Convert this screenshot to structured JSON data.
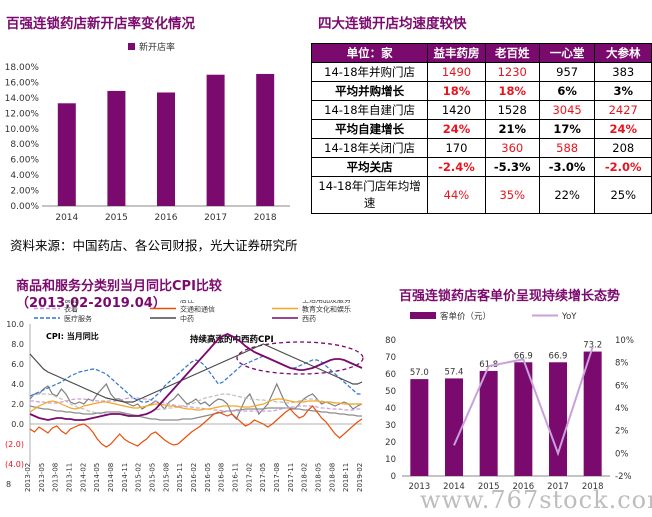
{
  "colors": {
    "purple": "#7B0A6E",
    "lavender": "#C9A0DC",
    "red": "#e8141e"
  },
  "left_title": "百强连锁药店新开店率变化情况",
  "right_title": "四大连锁开店均速度较快",
  "source": "资料来源：中国药店、各公司财报，光大证券研究所",
  "cpi_title_line1": "商品和服务分类别当月同比CPI比较",
  "cpi_title_line2": "（2013.02-2019.04）",
  "price_title": "百强连锁药店客单价呈现持续增长态势",
  "cpi_annotation": "持续高涨的中西药CPI",
  "cpi_inner_label": "CPI: 当月同比",
  "watermark": "www.767stock.com",
  "cpi_page_mark": "8",
  "table": {
    "header": [
      "单位：家",
      "益丰药房",
      "老百姓",
      "一心堂",
      "大参林"
    ],
    "rows": [
      {
        "label": "14-18年并购门店",
        "values": [
          "1490",
          "1230",
          "957",
          "383"
        ],
        "red": [
          true,
          true,
          false,
          false
        ],
        "bold": false
      },
      {
        "label": "平均并购增长",
        "values": [
          "18%",
          "18%",
          "6%",
          "3%"
        ],
        "red": [
          true,
          true,
          false,
          false
        ],
        "bold": true
      },
      {
        "label": "14-18年自建门店",
        "values": [
          "1420",
          "1528",
          "3045",
          "2427"
        ],
        "red": [
          false,
          false,
          true,
          true
        ],
        "bold": false
      },
      {
        "label": "平均自建增长",
        "values": [
          "24%",
          "21%",
          "17%",
          "24%"
        ],
        "red": [
          true,
          false,
          false,
          true
        ],
        "bold": true
      },
      {
        "label": "14-18年关闭门店",
        "values": [
          "170",
          "360",
          "588",
          "208"
        ],
        "red": [
          false,
          true,
          true,
          false
        ],
        "bold": false
      },
      {
        "label": "平均关店",
        "values": [
          "-2.4%",
          "-5.3%",
          "-3.0%",
          "-2.0%"
        ],
        "red": [
          true,
          false,
          false,
          true
        ],
        "bold": true
      },
      {
        "label": "14-18年门店年均增速",
        "values": [
          "44%",
          "35%",
          "22%",
          "25%"
        ],
        "red": [
          true,
          true,
          false,
          false
        ],
        "bold": false
      }
    ]
  },
  "chart_data": [
    {
      "type": "bar",
      "title": "百强连锁药店新开店率变化情况",
      "legend": [
        "新开店率"
      ],
      "categories": [
        "2014",
        "2015",
        "2016",
        "2017",
        "2018"
      ],
      "values": [
        13.3,
        14.9,
        14.7,
        17.0,
        17.1
      ],
      "yticks": [
        "0.00%",
        "2.00%",
        "4.00%",
        "6.00%",
        "8.00%",
        "10.00%",
        "12.00%",
        "14.00%",
        "16.00%",
        "18.00%"
      ],
      "ylim": [
        0,
        18
      ]
    },
    {
      "type": "line",
      "title": "商品和服务分类别当月同比CPI比较",
      "legend": [
        "食品",
        "居住",
        "生活用品及服务",
        "衣着",
        "交通和通信",
        "教育文化和娱乐",
        "医疗服务",
        "中药",
        "西药"
      ],
      "series_colors": [
        "#7f7f7f",
        "#bfbfbf",
        "#8c8c8c",
        "#c9a0dc",
        "#e8500a",
        "#f5a623",
        "#2e75d6",
        "#4a4a4a",
        "#7B0A6E"
      ],
      "xticks": [
        "2013-02",
        "2013-05",
        "2013-08",
        "2013-11",
        "2014-02",
        "2014-05",
        "2014-08",
        "2014-11",
        "2015-02",
        "2015-05",
        "2015-08",
        "2015-11",
        "2016-02",
        "2016-05",
        "2016-08",
        "2016-11",
        "2017-02",
        "2017-05",
        "2017-08",
        "2017-11",
        "2018-02",
        "2018-05",
        "2018-08",
        "2018-11",
        "2019-02"
      ],
      "yticks": [
        "10.0",
        "8.0",
        "6.0",
        "4.0",
        "2.0",
        "0.0",
        "(2.0)",
        "(4.0)"
      ],
      "ylim": [
        -4,
        10
      ],
      "series": [
        {
          "name": "食品",
          "values": [
            2.5,
            3.0,
            3.0,
            3.5,
            3.8,
            3.0,
            2.8,
            3.5,
            3.0,
            2.2,
            2.0,
            2.2,
            2.0,
            2.5,
            2.3,
            3.0,
            3.5,
            4.0,
            3.0,
            2.5,
            2.5,
            2.2,
            2.0,
            1.8,
            2.0,
            1.5,
            1.8,
            2.0,
            2.3,
            2.0,
            1.5,
            2.2,
            2.5,
            3.0,
            2.5,
            2.0,
            2.2,
            2.5,
            2.0,
            2.2,
            1.8,
            2.2,
            2.5,
            2.4,
            2.0,
            1.0,
            0.5,
            1.5,
            2.5,
            3.0,
            2.0,
            1.0,
            1.5,
            2.0,
            3.0,
            4.0,
            3.0,
            2.0,
            1.5,
            1.5,
            2.0,
            2.5,
            2.8,
            3.0,
            2.5,
            2.0,
            2.2,
            2.0,
            1.8,
            2.0,
            2.2,
            2.0,
            1.5,
            1.8,
            2.0
          ]
        },
        {
          "name": "居住",
          "values": [
            2.8,
            2.9,
            3.0,
            3.0,
            3.0,
            2.9,
            2.7,
            2.5,
            2.3,
            2.0,
            1.8,
            1.6,
            1.5,
            1.3,
            1.2,
            1.1,
            1.0,
            1.0,
            1.0,
            1.0,
            1.0,
            1.0,
            0.9,
            0.9,
            0.9,
            0.9,
            1.0,
            1.2,
            1.4,
            1.5,
            1.5,
            1.6,
            1.6,
            1.7,
            1.8,
            1.9,
            2.0,
            2.2,
            2.4,
            2.6,
            2.7,
            2.8,
            2.9,
            3.0,
            3.0,
            2.9,
            2.8,
            2.7,
            2.6,
            2.5,
            2.5,
            2.4,
            2.4,
            2.3,
            2.3,
            2.2,
            2.2,
            2.1,
            2.1,
            2.2,
            2.3,
            2.4,
            2.5,
            2.5,
            2.4,
            2.3,
            2.2,
            2.2,
            2.1,
            2.1,
            2.0,
            2.0,
            2.0,
            2.0,
            2.0
          ]
        },
        {
          "name": "生活用品及服务",
          "values": [
            1.8,
            1.7,
            1.6,
            1.5,
            1.5,
            1.4,
            1.3,
            1.3,
            1.2,
            1.2,
            1.1,
            1.1,
            1.0,
            1.0,
            1.0,
            1.1,
            1.1,
            1.2,
            1.2,
            1.2,
            1.2,
            1.1,
            1.0,
            0.9,
            0.8,
            0.7,
            0.6,
            0.5,
            0.5,
            0.4,
            0.4,
            0.4,
            0.4,
            0.4,
            0.5,
            0.5,
            0.5,
            0.6,
            0.7,
            0.8,
            0.9,
            1.0,
            1.1,
            1.2,
            1.3,
            1.3,
            1.4,
            1.4,
            1.5,
            1.5,
            1.5,
            1.5,
            1.5,
            1.6,
            1.6,
            1.6,
            1.6,
            1.6,
            1.6,
            1.5,
            1.5,
            1.4,
            1.4,
            1.3,
            1.3,
            1.2,
            1.2,
            1.1,
            1.1,
            1.0,
            1.0,
            0.9,
            0.9,
            0.8,
            0.8
          ]
        },
        {
          "name": "衣着",
          "values": [
            2.3,
            2.3,
            2.2,
            2.2,
            2.1,
            2.1,
            2.1,
            2.2,
            2.3,
            2.4,
            2.5,
            2.5,
            2.5,
            2.4,
            2.4,
            2.3,
            2.3,
            2.3,
            2.3,
            2.3,
            2.4,
            2.5,
            2.6,
            2.6,
            2.6,
            2.5,
            2.5,
            2.4,
            2.3,
            2.2,
            2.1,
            2.0,
            1.9,
            1.8,
            1.8,
            1.7,
            1.7,
            1.6,
            1.6,
            1.5,
            1.5,
            1.4,
            1.4,
            1.3,
            1.3,
            1.3,
            1.3,
            1.3,
            1.3,
            1.3,
            1.3,
            1.3,
            1.3,
            1.3,
            1.3,
            1.4,
            1.5,
            1.6,
            1.7,
            1.7,
            1.8,
            1.8,
            1.8,
            1.8,
            1.7,
            1.6,
            1.6,
            1.5,
            1.5,
            1.5,
            1.4,
            1.4,
            1.4,
            1.5,
            1.5
          ]
        },
        {
          "name": "交通和通信",
          "values": [
            -0.5,
            -0.8,
            -0.3,
            -0.6,
            -0.9,
            -0.4,
            -0.2,
            -0.7,
            -1.0,
            -0.5,
            -0.3,
            -0.1,
            0.0,
            -0.3,
            -0.8,
            -1.5,
            -2.0,
            -2.3,
            -2.0,
            -1.5,
            -1.0,
            -1.5,
            -1.8,
            -2.0,
            -2.2,
            -1.8,
            -1.5,
            -1.0,
            -0.8,
            -1.2,
            -1.6,
            -1.9,
            -2.1,
            -2.0,
            -1.6,
            -1.2,
            -0.8,
            -0.5,
            -0.2,
            0.2,
            0.6,
            1.0,
            1.2,
            1.0,
            0.8,
            1.0,
            0.6,
            0.2,
            -0.2,
            0.0,
            0.4,
            0.2,
            0.0,
            -0.3,
            0.0,
            0.4,
            0.8,
            1.2,
            1.5,
            1.0,
            0.6,
            0.8,
            1.4,
            1.8,
            1.2,
            0.6,
            0.2,
            -0.4,
            -1.0,
            -1.4,
            -1.0,
            -0.6,
            -0.2,
            0.2,
            0.5
          ]
        },
        {
          "name": "教育文化和娱乐",
          "values": [
            1.2,
            1.5,
            1.8,
            2.0,
            2.2,
            2.3,
            2.2,
            2.0,
            1.8,
            1.6,
            1.5,
            1.6,
            1.8,
            1.9,
            2.0,
            2.1,
            2.2,
            2.2,
            2.1,
            2.0,
            1.9,
            1.8,
            1.7,
            1.6,
            1.6,
            1.7,
            1.8,
            1.9,
            2.0,
            2.0,
            1.9,
            1.8,
            1.8,
            1.7,
            1.6,
            1.5,
            1.5,
            1.4,
            1.4,
            1.5,
            1.5,
            1.6,
            1.7,
            1.8,
            1.8,
            1.8,
            1.8,
            1.7,
            1.7,
            1.7,
            1.8,
            1.9,
            2.0,
            2.2,
            2.4,
            2.5,
            2.5,
            2.4,
            2.3,
            2.2,
            2.2,
            2.2,
            2.3,
            2.3,
            2.3,
            2.2,
            2.2,
            2.2,
            2.1,
            2.1,
            2.0,
            2.0,
            2.0,
            2.0,
            2.0
          ]
        },
        {
          "name": "医疗服务",
          "values": [
            2.8,
            3.0,
            3.2,
            3.4,
            3.6,
            3.8,
            4.0,
            4.2,
            4.5,
            4.8,
            5.0,
            5.2,
            5.3,
            5.4,
            5.5,
            5.4,
            5.2,
            5.0,
            4.6,
            4.2,
            3.8,
            3.4,
            3.0,
            2.6,
            2.4,
            2.2,
            2.2,
            2.4,
            2.8,
            3.2,
            3.8,
            4.2,
            4.6,
            5.0,
            5.4,
            5.8,
            6.2,
            6.4,
            6.2,
            5.8,
            5.2,
            4.6,
            4.0,
            4.2,
            4.6,
            5.0,
            5.4,
            5.8,
            6.0,
            6.2,
            6.4,
            6.6,
            6.8,
            6.6,
            6.4,
            6.2,
            6.0,
            5.8,
            5.6,
            5.6,
            5.8,
            6.0,
            6.2,
            6.4,
            6.4,
            6.2,
            5.8,
            5.4,
            5.0,
            4.6,
            4.2,
            3.8,
            3.4,
            3.0,
            3.0
          ]
        },
        {
          "name": "中药",
          "values": [
            7.0,
            6.5,
            6.0,
            5.5,
            5.2,
            5.0,
            4.8,
            4.6,
            4.4,
            4.2,
            4.0,
            3.8,
            3.6,
            3.4,
            3.2,
            3.0,
            2.8,
            2.6,
            2.5,
            2.4,
            2.3,
            2.2,
            2.2,
            2.2,
            2.4,
            2.6,
            2.8,
            3.0,
            3.2,
            3.4,
            3.6,
            3.8,
            4.0,
            4.2,
            4.4,
            4.6,
            4.8,
            5.0,
            5.2,
            5.4,
            5.6,
            5.8,
            6.0,
            6.2,
            6.4,
            6.6,
            6.8,
            7.0,
            7.2,
            7.4,
            7.6,
            7.8,
            8.0,
            7.8,
            7.6,
            7.4,
            7.2,
            7.0,
            6.8,
            6.6,
            6.4,
            6.2,
            6.0,
            5.8,
            5.6,
            5.4,
            5.2,
            5.0,
            4.8,
            4.6,
            4.4,
            4.2,
            4.0,
            4.0,
            4.2
          ]
        },
        {
          "name": "西药",
          "values": [
            1.0,
            0.8,
            0.6,
            0.5,
            0.4,
            0.5,
            0.6,
            0.6,
            0.5,
            0.5,
            0.4,
            0.4,
            0.4,
            0.5,
            0.6,
            0.7,
            0.8,
            0.9,
            1.0,
            1.0,
            1.0,
            0.9,
            0.8,
            0.8,
            0.8,
            0.9,
            1.0,
            1.2,
            1.5,
            2.0,
            2.5,
            3.0,
            3.5,
            4.0,
            4.5,
            5.0,
            5.5,
            6.0,
            6.5,
            7.0,
            7.5,
            8.0,
            8.5,
            8.8,
            9.0,
            8.8,
            8.5,
            8.2,
            7.8,
            7.5,
            7.2,
            7.0,
            6.8,
            6.6,
            6.4,
            6.2,
            6.0,
            5.8,
            5.6,
            5.5,
            5.4,
            5.4,
            5.5,
            5.6,
            5.8,
            6.0,
            6.2,
            6.4,
            6.5,
            6.5,
            6.4,
            6.2,
            6.0,
            5.8,
            5.6
          ]
        }
      ]
    },
    {
      "type": "bar",
      "title": "百强连锁药店客单价呈现持续增长态势",
      "legend": [
        "客单价（元）",
        "YoY"
      ],
      "categories": [
        "2013",
        "2014",
        "2015",
        "2016",
        "2017",
        "2018"
      ],
      "values": [
        57.0,
        57.4,
        61.8,
        66.9,
        66.9,
        73.2
      ],
      "value_labels": [
        "57.0",
        "57.4",
        "61.8",
        "66.9",
        "66.9",
        "73.2"
      ],
      "yoy_percent": [
        null,
        0.7,
        7.7,
        8.3,
        0.0,
        9.4
      ],
      "yticks_left": [
        "0",
        "10",
        "20",
        "30",
        "40",
        "50",
        "60",
        "70",
        "80"
      ],
      "yticks_right": [
        "-2%",
        "0%",
        "2%",
        "4%",
        "6%",
        "8%",
        "10%"
      ],
      "ylim": [
        0,
        80
      ],
      "y2lim": [
        -2,
        10
      ]
    }
  ]
}
